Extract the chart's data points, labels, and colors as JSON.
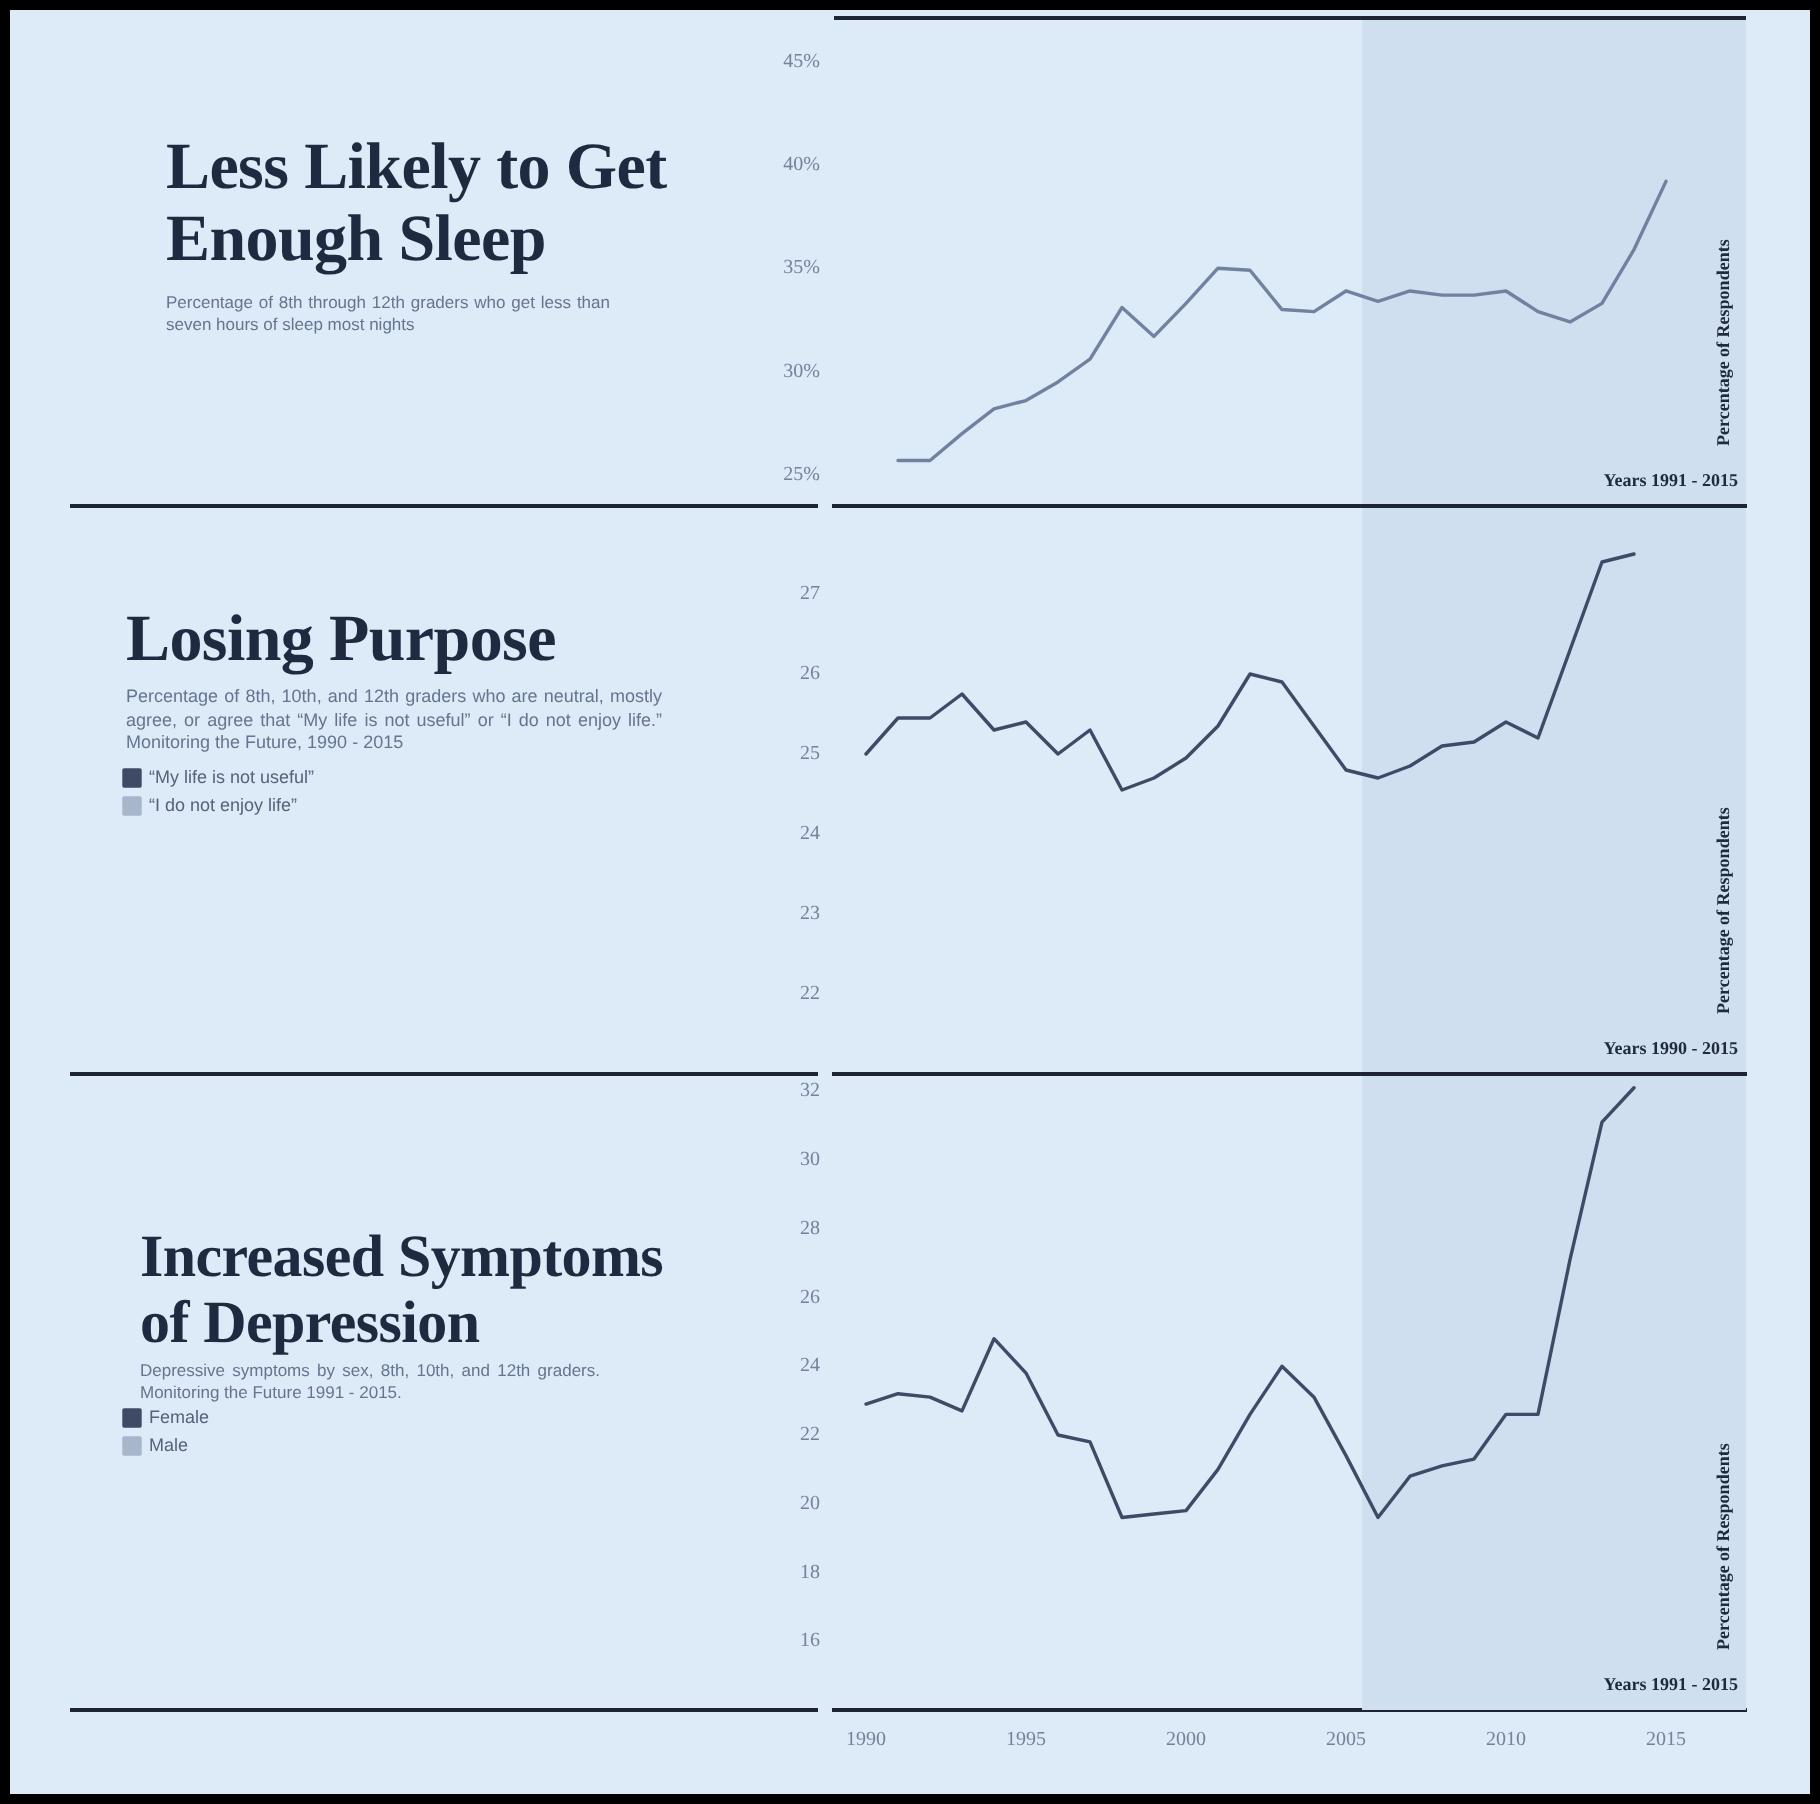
{
  "chart_data": [
    {
      "type": "line",
      "title": "Less Likely to Get Enough Sleep",
      "annotations": [
        "Percentage of 8th through 12th graders who get less than seven hours of sleep most nights"
      ],
      "xlabel": "Years 1991 - 2015",
      "ylabel": "Percentage of Respondents",
      "x": [
        1991,
        1992,
        1993,
        1994,
        1995,
        1996,
        1997,
        1998,
        1999,
        2000,
        2001,
        2002,
        2003,
        2004,
        2005,
        2006,
        2007,
        2008,
        2009,
        2010,
        2011,
        2012,
        2013,
        2014,
        2015
      ],
      "values": [
        25.7,
        25.7,
        27.0,
        28.2,
        28.6,
        29.5,
        30.6,
        33.1,
        31.7,
        33.3,
        35.0,
        34.9,
        33.0,
        32.9,
        33.9,
        33.4,
        33.9,
        33.7,
        33.7,
        33.9,
        32.9,
        32.4,
        33.3,
        35.9,
        39.2
      ],
      "color": "#7281a0",
      "xlim": [
        1989,
        2017.5
      ],
      "ylim": [
        23.5,
        47.1
      ],
      "yticks": [
        {
          "value": 25,
          "label": "25%"
        },
        {
          "value": 30,
          "label": "30%"
        },
        {
          "value": 35,
          "label": "35%"
        },
        {
          "value": 40,
          "label": "40%"
        },
        {
          "value": 45,
          "label": "45%"
        }
      ],
      "tick_labels": "y",
      "bands": [
        {
          "axis": "x",
          "from": 2005.5,
          "to": 2017.5,
          "color": "#cfdfef"
        }
      ]
    },
    {
      "type": "line",
      "title": "Losing Purpose",
      "annotations": [
        "Percentage of 8th, 10th, and 12th graders who are neutral, mostly agree, or agree that “My life is not useful” or “I do not enjoy life.” Monitoring the Future, 1990 - 2015"
      ],
      "xlabel": "Years 1990 - 2015",
      "ylabel": "Percentage of Respondents",
      "x": [
        1990,
        1991,
        1992,
        1993,
        1994,
        1995,
        1996,
        1997,
        1998,
        1999,
        2000,
        2001,
        2002,
        2003,
        2004,
        2005,
        2006,
        2007,
        2008,
        2009,
        2010,
        2011,
        2012,
        2013,
        2014
      ],
      "series": [
        {
          "name": "“My life is not useful”",
          "color": "#3f4a66",
          "values": [
            25.0,
            25.45,
            25.45,
            25.75,
            25.3,
            25.4,
            25.0,
            25.3,
            24.55,
            24.7,
            24.95,
            25.35,
            26.0,
            25.9,
            25.35,
            24.8,
            24.7,
            24.85,
            25.1,
            25.15,
            25.4,
            25.2,
            26.3,
            27.4,
            27.5
          ]
        },
        {
          "name": "“I do not enjoy life”",
          "color": "#a8b6cc",
          "values": [
            null,
            null,
            null,
            null,
            null,
            null,
            null,
            null,
            null,
            null,
            null,
            null,
            null,
            null,
            null,
            null,
            null,
            null,
            null,
            null,
            null,
            null,
            null,
            null,
            null
          ]
        }
      ],
      "xlim": [
        1989,
        2017.5
      ],
      "ylim": [
        21,
        28.1
      ],
      "yticks": [
        22,
        23,
        24,
        25,
        26,
        27
      ],
      "tick_labels": "y",
      "legend": "left",
      "bands": [
        {
          "axis": "x",
          "from": 2005.5,
          "to": 2017.5,
          "color": "#cfdfef"
        }
      ]
    },
    {
      "type": "line",
      "title": "Increased Symptoms of Depression",
      "annotations": [
        "Depressive symptoms by sex, 8th, 10th, and 12th graders. Monitoring the Future 1991 - 2015."
      ],
      "xlabel": "Years 1991 - 2015",
      "ylabel": "Percentage of Respondents",
      "x": [
        1990,
        1991,
        1992,
        1993,
        1994,
        1995,
        1996,
        1997,
        1998,
        1999,
        2000,
        2001,
        2002,
        2003,
        2004,
        2005,
        2006,
        2007,
        2008,
        2009,
        2010,
        2011,
        2012,
        2013,
        2014
      ],
      "series": [
        {
          "name": "Female",
          "color": "#3f4a66",
          "values": [
            22.9,
            23.2,
            23.1,
            22.7,
            24.8,
            23.8,
            22.0,
            21.8,
            19.6,
            19.7,
            19.8,
            21.0,
            22.6,
            24.0,
            23.1,
            21.4,
            19.6,
            20.8,
            21.1,
            21.3,
            22.6,
            22.6,
            27.1,
            31.1,
            32.1
          ]
        },
        {
          "name": "Male",
          "color": "#a8b6cc",
          "values": [
            null,
            null,
            null,
            null,
            null,
            null,
            null,
            null,
            null,
            null,
            null,
            null,
            null,
            null,
            null,
            null,
            null,
            null,
            null,
            null,
            null,
            null,
            null,
            null,
            null
          ]
        }
      ],
      "xlim": [
        1989,
        2017.5
      ],
      "xticks": [
        1990,
        1995,
        2000,
        2005,
        2010,
        2015
      ],
      "ylim": [
        14,
        32.5
      ],
      "yticks": [
        16,
        18,
        20,
        22,
        24,
        26,
        28,
        30,
        32
      ],
      "legend": "left",
      "bands": [
        {
          "axis": "x",
          "from": 2005.5,
          "to": 2017.5,
          "color": "#cfdfef"
        }
      ]
    }
  ]
}
